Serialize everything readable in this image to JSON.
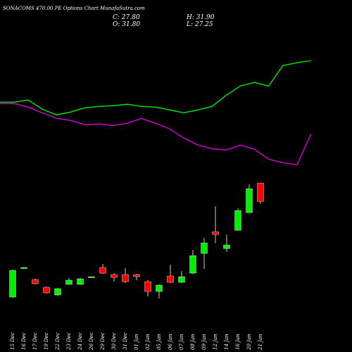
{
  "chart_data": {
    "type": "candlestick",
    "title": "SONACOMS 470.00  PE Options  Chart MunafaSutra.com",
    "info": {
      "close": "C: 27.80",
      "high": "H: 31.90",
      "open": "O: 31.80",
      "low": "L: 27.25"
    },
    "categories": [
      "15 Dec",
      "16 Dec",
      "17 Dec",
      "19 Dec",
      "22 Dec",
      "23 Dec",
      "24 Dec",
      "26 Dec",
      "29 Dec",
      "30 Dec",
      "31 Dec",
      "01 Jan",
      "02 Jan",
      "05 Jan",
      "06 Jan",
      "07 Jan",
      "08 Jan",
      "09 Jan",
      "12 Jan",
      "14 Jan",
      "16 Jan",
      "20 Jan",
      "21 Jan"
    ],
    "open": [
      6.88,
      13.18,
      10.72,
      9.03,
      7.34,
      9.65,
      9.65,
      11.18,
      13.34,
      11.8,
      11.8,
      11.8,
      10.26,
      8.11,
      11.49,
      10.11,
      12.11,
      16.42,
      21.18,
      17.49,
      21.49,
      25.34,
      31.8
    ],
    "high": [
      12.88,
      13.49,
      10.88,
      9.18,
      8.88,
      11.03,
      11.03,
      11.34,
      14.11,
      12.11,
      13.18,
      11.95,
      10.57,
      9.65,
      13.95,
      12.57,
      17.18,
      19.8,
      26.72,
      20.57,
      26.26,
      31.49,
      31.9
    ],
    "low": [
      6.72,
      13.18,
      9.65,
      7.65,
      7.18,
      9.65,
      9.65,
      11.18,
      11.95,
      10.26,
      9.95,
      10.57,
      7.03,
      6.57,
      9.95,
      9.95,
      11.95,
      13.03,
      18.72,
      16.72,
      21.49,
      25.34,
      27.25
    ],
    "close": [
      12.72,
      13.34,
      9.8,
      7.8,
      8.72,
      10.57,
      10.88,
      11.34,
      12.11,
      11.18,
      10.26,
      11.34,
      8.11,
      9.49,
      10.11,
      11.34,
      15.95,
      18.72,
      20.57,
      18.26,
      25.8,
      30.57,
      27.8
    ],
    "up_color": "#00ee00",
    "down_color": "#ff0000",
    "series": [
      {
        "color": "#00dd00",
        "values": [
          49.49,
          49.49,
          49.95,
          47.95,
          46.72,
          47.34,
          48.26,
          48.57,
          48.72,
          49.03,
          48.57,
          48.42,
          47.8,
          47.18,
          47.8,
          48.57,
          51.03,
          53.03,
          53.8,
          53.03,
          57.49,
          58.11,
          58.57
        ]
      },
      {
        "color": "#cc00cc",
        "values": [
          49.18,
          49.18,
          48.42,
          47.18,
          45.95,
          45.49,
          44.57,
          44.72,
          44.42,
          44.88,
          45.95,
          44.88,
          43.65,
          41.65,
          40.11,
          39.34,
          39.03,
          40.11,
          39.18,
          37.03,
          36.26,
          35.8,
          42.57
        ]
      }
    ],
    "ylim": [
      5,
      62.6
    ]
  }
}
